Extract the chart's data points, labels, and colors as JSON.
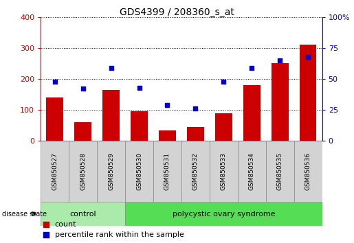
{
  "title": "GDS4399 / 208360_s_at",
  "samples": [
    "GSM850527",
    "GSM850528",
    "GSM850529",
    "GSM850530",
    "GSM850531",
    "GSM850532",
    "GSM850533",
    "GSM850534",
    "GSM850535",
    "GSM850536"
  ],
  "counts": [
    140,
    60,
    165,
    95,
    35,
    45,
    90,
    180,
    250,
    310
  ],
  "percentiles": [
    48,
    42,
    59,
    43,
    29,
    26,
    48,
    59,
    65,
    68
  ],
  "ylim_left": [
    0,
    400
  ],
  "ylim_right": [
    0,
    100
  ],
  "yticks_left": [
    0,
    100,
    200,
    300,
    400
  ],
  "yticks_right": [
    0,
    25,
    50,
    75,
    100
  ],
  "bar_color": "#cc0000",
  "scatter_color": "#0000cc",
  "grid_color": "#000000",
  "n_control": 3,
  "n_disease": 7,
  "control_label": "control",
  "disease_label": "polycystic ovary syndrome",
  "disease_state_label": "disease state",
  "control_bg": "#aaeaaa",
  "disease_bg": "#55dd55",
  "sample_bg": "#d3d3d3",
  "legend_count_label": "count",
  "legend_pct_label": "percentile rank within the sample",
  "yright_label_color": "#0000cc",
  "yleft_label_color": "#cc0000",
  "spine_color": "#000000"
}
